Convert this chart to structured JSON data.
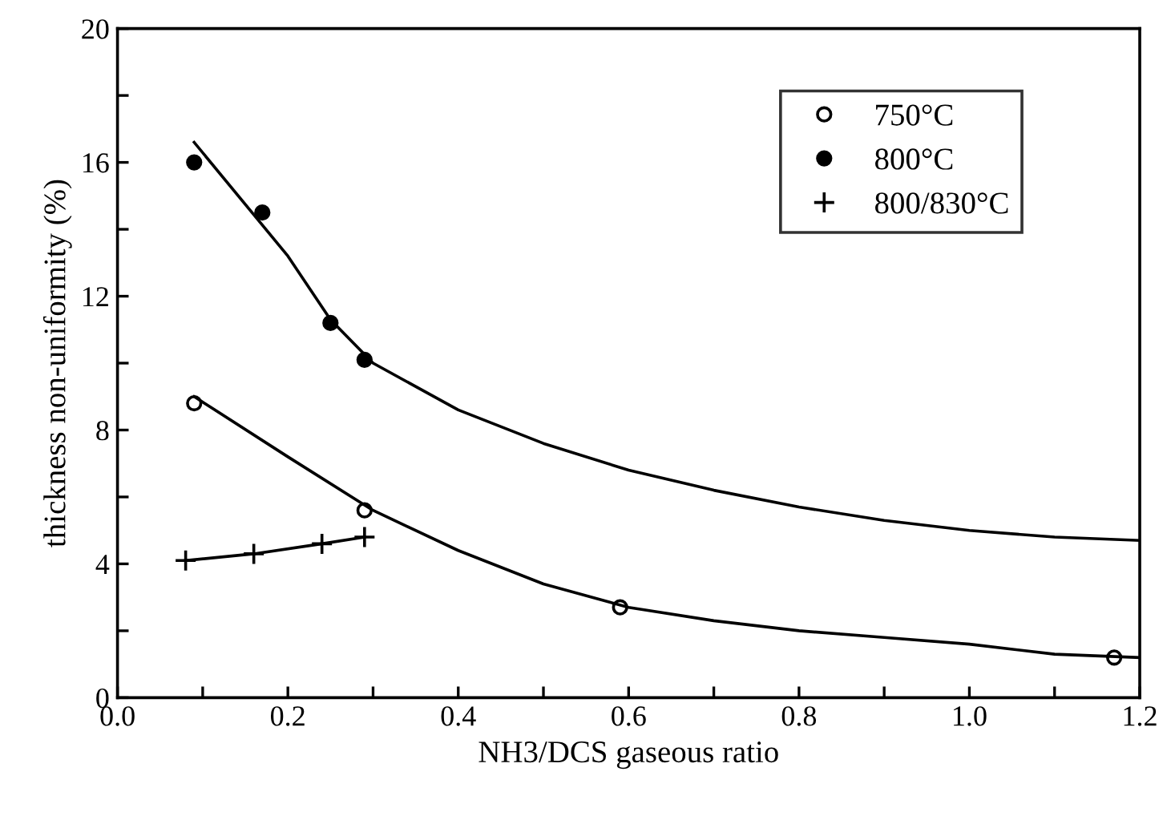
{
  "chart_data": {
    "type": "scatter",
    "xlabel": "NH3/DCS gaseous ratio",
    "ylabel": "thickness non-uniformity (%)",
    "xlim": [
      0.0,
      1.2
    ],
    "ylim": [
      0,
      20
    ],
    "xticks": [
      {
        "value": 0.0,
        "label": "0.0"
      },
      {
        "value": 0.1,
        "label": null
      },
      {
        "value": 0.2,
        "label": "0.2"
      },
      {
        "value": 0.3,
        "label": null
      },
      {
        "value": 0.4,
        "label": "0.4"
      },
      {
        "value": 0.5,
        "label": null
      },
      {
        "value": 0.6,
        "label": "0.6"
      },
      {
        "value": 0.7,
        "label": null
      },
      {
        "value": 0.8,
        "label": "0.8"
      },
      {
        "value": 0.9,
        "label": null
      },
      {
        "value": 1.0,
        "label": "1.0"
      },
      {
        "value": 1.1,
        "label": null
      },
      {
        "value": 1.2,
        "label": "1.2"
      }
    ],
    "yticks": [
      0,
      {
        "value": 2,
        "label": null
      },
      4,
      {
        "value": 6,
        "label": null
      },
      8,
      {
        "value": 10,
        "label": null
      },
      12,
      {
        "value": 14,
        "label": null
      },
      16,
      {
        "value": 18,
        "label": null
      },
      20
    ],
    "grid": false,
    "legend": "top right",
    "series": [
      {
        "name": "750°C",
        "marker": "open circle",
        "color": "#000000",
        "x": [
          0.09,
          0.29,
          0.59,
          1.17
        ],
        "values": [
          8.8,
          5.6,
          2.7,
          1.2
        ]
      },
      {
        "name": "800°C",
        "marker": "circle",
        "color": "#000000",
        "x": [
          0.09,
          0.17,
          0.25,
          0.29
        ],
        "values": [
          16.0,
          14.5,
          11.2,
          10.1
        ]
      },
      {
        "name": "800/830°C",
        "type": "line",
        "marker": "cross",
        "color": "#000000",
        "x": [
          0.08,
          0.16,
          0.24,
          0.29
        ],
        "values": [
          4.1,
          4.3,
          4.6,
          4.8
        ]
      },
      {
        "type": "line",
        "marker": "none",
        "color": "#000000",
        "x": [
          0.09,
          0.2,
          0.25,
          0.3,
          0.4,
          0.5,
          0.6,
          0.7,
          0.8,
          0.9,
          1.0,
          1.1,
          1.2
        ],
        "values": [
          16.6,
          13.2,
          11.3,
          10.0,
          8.6,
          7.6,
          6.8,
          6.2,
          5.7,
          5.3,
          5.0,
          4.8,
          4.7
        ]
      },
      {
        "type": "line",
        "marker": "none",
        "color": "#000000",
        "x": [
          0.09,
          0.2,
          0.3,
          0.4,
          0.5,
          0.6,
          0.7,
          0.8,
          0.9,
          1.0,
          1.1,
          1.2
        ],
        "values": [
          9.0,
          7.2,
          5.6,
          4.4,
          3.4,
          2.7,
          2.3,
          2.0,
          1.8,
          1.6,
          1.3,
          1.2
        ]
      }
    ]
  }
}
